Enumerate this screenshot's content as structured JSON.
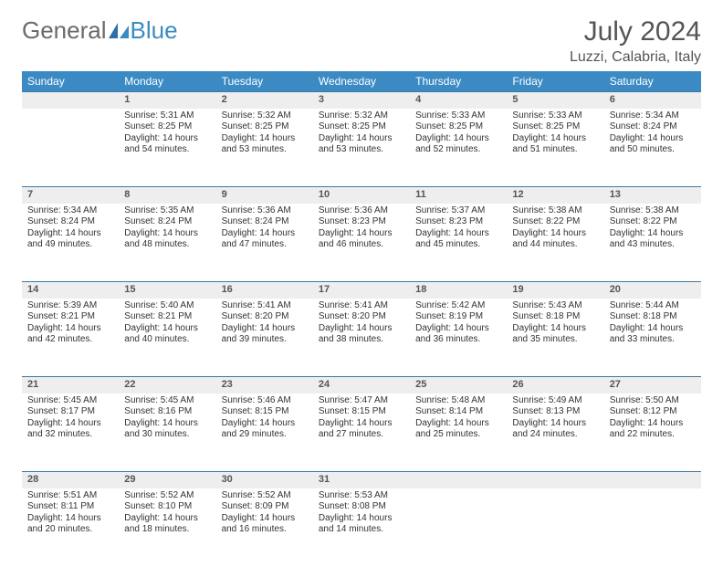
{
  "logo": {
    "part1": "General",
    "part2": "Blue"
  },
  "title": "July 2024",
  "location": "Luzzi, Calabria, Italy",
  "weekdays": [
    "Sunday",
    "Monday",
    "Tuesday",
    "Wednesday",
    "Thursday",
    "Friday",
    "Saturday"
  ],
  "colors": {
    "header_bg": "#3b8ac4",
    "header_text": "#ffffff",
    "daynum_bg": "#eeeeee",
    "border": "#3b7aa8",
    "logo_gray": "#6a6a6a",
    "logo_blue": "#3b8ac4"
  },
  "weeks": [
    {
      "nums": [
        "",
        "1",
        "2",
        "3",
        "4",
        "5",
        "6"
      ],
      "cells": [
        null,
        {
          "sunrise": "Sunrise: 5:31 AM",
          "sunset": "Sunset: 8:25 PM",
          "day1": "Daylight: 14 hours",
          "day2": "and 54 minutes."
        },
        {
          "sunrise": "Sunrise: 5:32 AM",
          "sunset": "Sunset: 8:25 PM",
          "day1": "Daylight: 14 hours",
          "day2": "and 53 minutes."
        },
        {
          "sunrise": "Sunrise: 5:32 AM",
          "sunset": "Sunset: 8:25 PM",
          "day1": "Daylight: 14 hours",
          "day2": "and 53 minutes."
        },
        {
          "sunrise": "Sunrise: 5:33 AM",
          "sunset": "Sunset: 8:25 PM",
          "day1": "Daylight: 14 hours",
          "day2": "and 52 minutes."
        },
        {
          "sunrise": "Sunrise: 5:33 AM",
          "sunset": "Sunset: 8:25 PM",
          "day1": "Daylight: 14 hours",
          "day2": "and 51 minutes."
        },
        {
          "sunrise": "Sunrise: 5:34 AM",
          "sunset": "Sunset: 8:24 PM",
          "day1": "Daylight: 14 hours",
          "day2": "and 50 minutes."
        }
      ]
    },
    {
      "nums": [
        "7",
        "8",
        "9",
        "10",
        "11",
        "12",
        "13"
      ],
      "cells": [
        {
          "sunrise": "Sunrise: 5:34 AM",
          "sunset": "Sunset: 8:24 PM",
          "day1": "Daylight: 14 hours",
          "day2": "and 49 minutes."
        },
        {
          "sunrise": "Sunrise: 5:35 AM",
          "sunset": "Sunset: 8:24 PM",
          "day1": "Daylight: 14 hours",
          "day2": "and 48 minutes."
        },
        {
          "sunrise": "Sunrise: 5:36 AM",
          "sunset": "Sunset: 8:24 PM",
          "day1": "Daylight: 14 hours",
          "day2": "and 47 minutes."
        },
        {
          "sunrise": "Sunrise: 5:36 AM",
          "sunset": "Sunset: 8:23 PM",
          "day1": "Daylight: 14 hours",
          "day2": "and 46 minutes."
        },
        {
          "sunrise": "Sunrise: 5:37 AM",
          "sunset": "Sunset: 8:23 PM",
          "day1": "Daylight: 14 hours",
          "day2": "and 45 minutes."
        },
        {
          "sunrise": "Sunrise: 5:38 AM",
          "sunset": "Sunset: 8:22 PM",
          "day1": "Daylight: 14 hours",
          "day2": "and 44 minutes."
        },
        {
          "sunrise": "Sunrise: 5:38 AM",
          "sunset": "Sunset: 8:22 PM",
          "day1": "Daylight: 14 hours",
          "day2": "and 43 minutes."
        }
      ]
    },
    {
      "nums": [
        "14",
        "15",
        "16",
        "17",
        "18",
        "19",
        "20"
      ],
      "cells": [
        {
          "sunrise": "Sunrise: 5:39 AM",
          "sunset": "Sunset: 8:21 PM",
          "day1": "Daylight: 14 hours",
          "day2": "and 42 minutes."
        },
        {
          "sunrise": "Sunrise: 5:40 AM",
          "sunset": "Sunset: 8:21 PM",
          "day1": "Daylight: 14 hours",
          "day2": "and 40 minutes."
        },
        {
          "sunrise": "Sunrise: 5:41 AM",
          "sunset": "Sunset: 8:20 PM",
          "day1": "Daylight: 14 hours",
          "day2": "and 39 minutes."
        },
        {
          "sunrise": "Sunrise: 5:41 AM",
          "sunset": "Sunset: 8:20 PM",
          "day1": "Daylight: 14 hours",
          "day2": "and 38 minutes."
        },
        {
          "sunrise": "Sunrise: 5:42 AM",
          "sunset": "Sunset: 8:19 PM",
          "day1": "Daylight: 14 hours",
          "day2": "and 36 minutes."
        },
        {
          "sunrise": "Sunrise: 5:43 AM",
          "sunset": "Sunset: 8:18 PM",
          "day1": "Daylight: 14 hours",
          "day2": "and 35 minutes."
        },
        {
          "sunrise": "Sunrise: 5:44 AM",
          "sunset": "Sunset: 8:18 PM",
          "day1": "Daylight: 14 hours",
          "day2": "and 33 minutes."
        }
      ]
    },
    {
      "nums": [
        "21",
        "22",
        "23",
        "24",
        "25",
        "26",
        "27"
      ],
      "cells": [
        {
          "sunrise": "Sunrise: 5:45 AM",
          "sunset": "Sunset: 8:17 PM",
          "day1": "Daylight: 14 hours",
          "day2": "and 32 minutes."
        },
        {
          "sunrise": "Sunrise: 5:45 AM",
          "sunset": "Sunset: 8:16 PM",
          "day1": "Daylight: 14 hours",
          "day2": "and 30 minutes."
        },
        {
          "sunrise": "Sunrise: 5:46 AM",
          "sunset": "Sunset: 8:15 PM",
          "day1": "Daylight: 14 hours",
          "day2": "and 29 minutes."
        },
        {
          "sunrise": "Sunrise: 5:47 AM",
          "sunset": "Sunset: 8:15 PM",
          "day1": "Daylight: 14 hours",
          "day2": "and 27 minutes."
        },
        {
          "sunrise": "Sunrise: 5:48 AM",
          "sunset": "Sunset: 8:14 PM",
          "day1": "Daylight: 14 hours",
          "day2": "and 25 minutes."
        },
        {
          "sunrise": "Sunrise: 5:49 AM",
          "sunset": "Sunset: 8:13 PM",
          "day1": "Daylight: 14 hours",
          "day2": "and 24 minutes."
        },
        {
          "sunrise": "Sunrise: 5:50 AM",
          "sunset": "Sunset: 8:12 PM",
          "day1": "Daylight: 14 hours",
          "day2": "and 22 minutes."
        }
      ]
    },
    {
      "nums": [
        "28",
        "29",
        "30",
        "31",
        "",
        "",
        ""
      ],
      "cells": [
        {
          "sunrise": "Sunrise: 5:51 AM",
          "sunset": "Sunset: 8:11 PM",
          "day1": "Daylight: 14 hours",
          "day2": "and 20 minutes."
        },
        {
          "sunrise": "Sunrise: 5:52 AM",
          "sunset": "Sunset: 8:10 PM",
          "day1": "Daylight: 14 hours",
          "day2": "and 18 minutes."
        },
        {
          "sunrise": "Sunrise: 5:52 AM",
          "sunset": "Sunset: 8:09 PM",
          "day1": "Daylight: 14 hours",
          "day2": "and 16 minutes."
        },
        {
          "sunrise": "Sunrise: 5:53 AM",
          "sunset": "Sunset: 8:08 PM",
          "day1": "Daylight: 14 hours",
          "day2": "and 14 minutes."
        },
        null,
        null,
        null
      ]
    }
  ]
}
